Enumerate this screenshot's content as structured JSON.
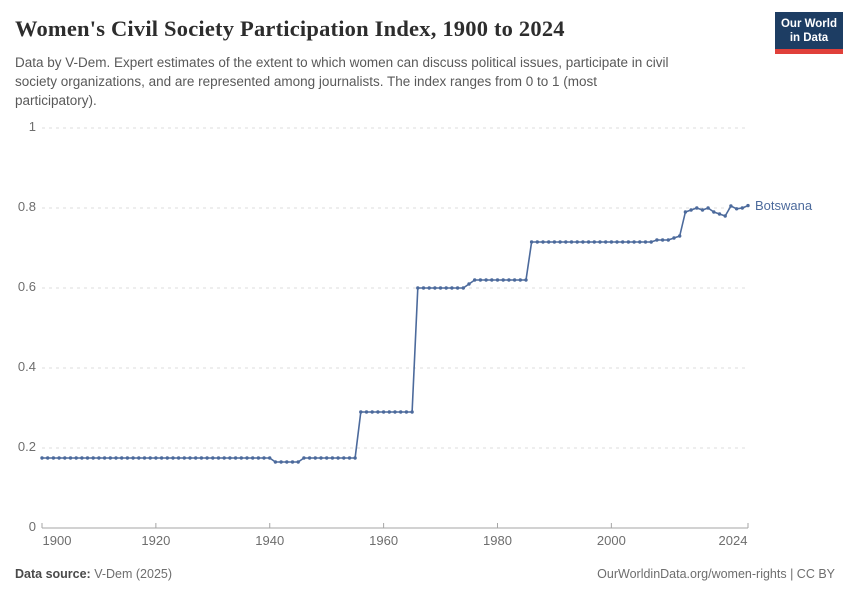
{
  "header": {
    "subtitle_lines": [
      "Data by V-Dem. Expert estimates of the extent to which women can discuss political issues, participate in civil",
      "society organizations, and are represented among journalists. The index ranges from 0 to 1 (most",
      "participatory)."
    ],
    "logo": {
      "line1": "Our World",
      "line2": "in Data",
      "bg_color": "#1d3d63",
      "bar_color": "#e0403a"
    }
  },
  "footer": {
    "source_label": "Data source:",
    "source_value": " V-Dem (2025)",
    "link_text": "OurWorldinData.org/women-rights | CC BY"
  },
  "colors": {
    "series_blue": "#4c6a9c",
    "gridline": "#dcdcdc",
    "axis": "#a5a5a5",
    "tick_text": "#6e6e6e"
  },
  "chart_data": {
    "type": "line",
    "title": "Women's Civil Society Participation Index, 1900 to 2024",
    "xlabel": "",
    "ylabel": "",
    "x_range": [
      1900,
      2024
    ],
    "ylim": [
      0,
      1
    ],
    "yticks": [
      0,
      0.2,
      0.4,
      0.6,
      0.8,
      1
    ],
    "ytick_labels": [
      "0",
      "0.2",
      "0.4",
      "0.6",
      "0.8",
      "1"
    ],
    "xticks": [
      1900,
      1920,
      1940,
      1960,
      1980,
      2000,
      2024
    ],
    "grid": "horizontal-dashed",
    "legend": "end-of-line-label",
    "series": [
      {
        "name": "Botswana",
        "color": "#4c6a9c",
        "x_start": 1900,
        "x_step": 1,
        "values": [
          0.175,
          0.175,
          0.175,
          0.175,
          0.175,
          0.175,
          0.175,
          0.175,
          0.175,
          0.175,
          0.175,
          0.175,
          0.175,
          0.175,
          0.175,
          0.175,
          0.175,
          0.175,
          0.175,
          0.175,
          0.175,
          0.175,
          0.175,
          0.175,
          0.175,
          0.175,
          0.175,
          0.175,
          0.175,
          0.175,
          0.175,
          0.175,
          0.175,
          0.175,
          0.175,
          0.175,
          0.175,
          0.175,
          0.175,
          0.175,
          0.175,
          0.165,
          0.165,
          0.165,
          0.165,
          0.165,
          0.175,
          0.175,
          0.175,
          0.175,
          0.175,
          0.175,
          0.175,
          0.175,
          0.175,
          0.175,
          0.29,
          0.29,
          0.29,
          0.29,
          0.29,
          0.29,
          0.29,
          0.29,
          0.29,
          0.29,
          0.6,
          0.6,
          0.6,
          0.6,
          0.6,
          0.6,
          0.6,
          0.6,
          0.6,
          0.61,
          0.62,
          0.62,
          0.62,
          0.62,
          0.62,
          0.62,
          0.62,
          0.62,
          0.62,
          0.62,
          0.715,
          0.715,
          0.715,
          0.715,
          0.715,
          0.715,
          0.715,
          0.715,
          0.715,
          0.715,
          0.715,
          0.715,
          0.715,
          0.715,
          0.715,
          0.715,
          0.715,
          0.715,
          0.715,
          0.715,
          0.715,
          0.715,
          0.72,
          0.72,
          0.72,
          0.725,
          0.73,
          0.79,
          0.795,
          0.8,
          0.795,
          0.8,
          0.79,
          0.785,
          0.78,
          0.805,
          0.798,
          0.8,
          0.806
        ]
      }
    ]
  }
}
